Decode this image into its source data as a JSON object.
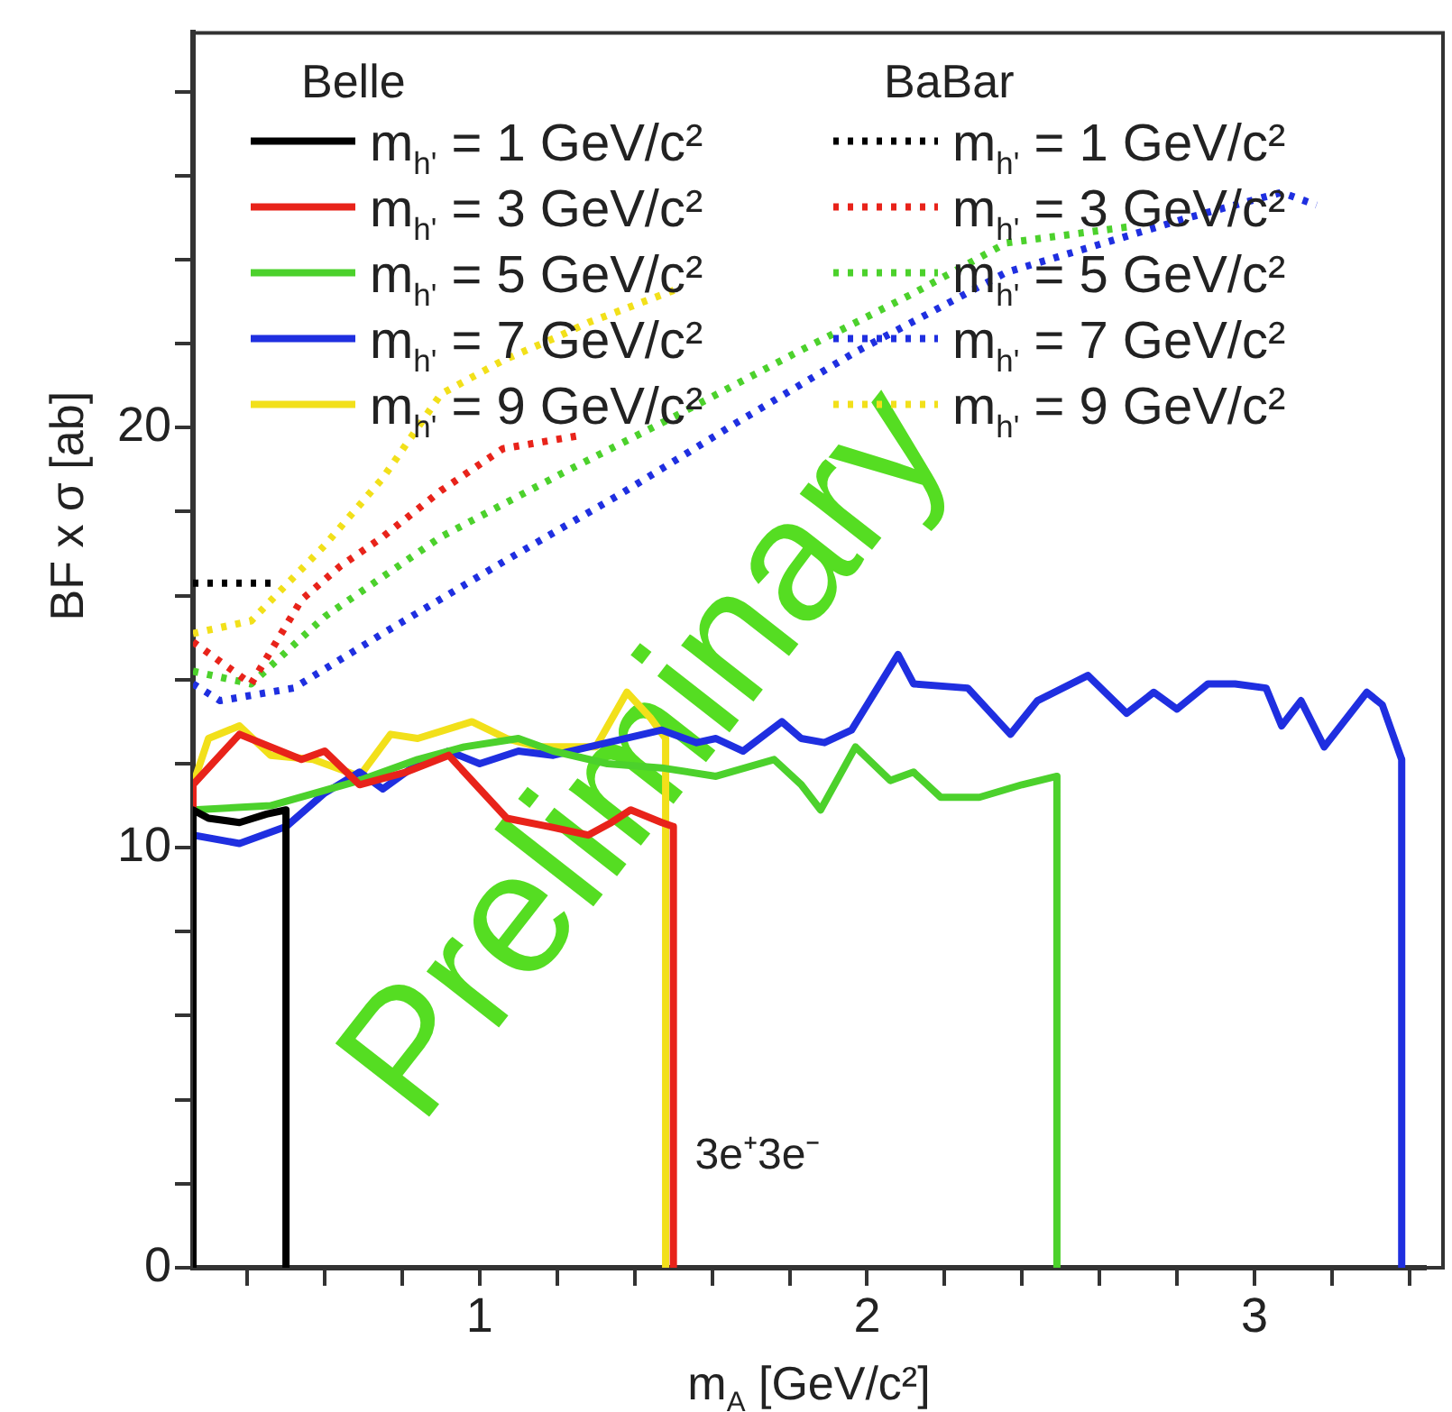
{
  "chart_data": {
    "type": "line",
    "xlabel": "m$_{A}$ [GeV/c²]",
    "ylabel": "BF x σ [ab]",
    "xlim": [
      0.26,
      3.44
    ],
    "ylim": [
      0,
      29.4
    ],
    "xticks": [
      {
        "value": 0.4,
        "label": null
      },
      {
        "value": 0.6,
        "label": null
      },
      {
        "value": 0.8,
        "label": null
      },
      1,
      {
        "value": 1.2,
        "label": null
      },
      {
        "value": 1.4,
        "label": null
      },
      {
        "value": 1.6,
        "label": null
      },
      {
        "value": 1.8,
        "label": null
      },
      2,
      {
        "value": 2.2,
        "label": null
      },
      {
        "value": 2.4,
        "label": null
      },
      {
        "value": 2.6,
        "label": null
      },
      {
        "value": 2.8,
        "label": null
      },
      3,
      {
        "value": 3.2,
        "label": null
      },
      {
        "value": 3.4,
        "label": null
      }
    ],
    "yticks": [
      0,
      {
        "value": 2,
        "label": null
      },
      {
        "value": 4,
        "label": null
      },
      {
        "value": 6,
        "label": null
      },
      {
        "value": 8,
        "label": null
      },
      10,
      {
        "value": 12,
        "label": null
      },
      {
        "value": 14,
        "label": null
      },
      {
        "value": 16,
        "label": null
      },
      {
        "value": 18,
        "label": null
      },
      20,
      {
        "value": 22,
        "label": null
      },
      {
        "value": 24,
        "label": null
      },
      {
        "value": 26,
        "label": null
      },
      {
        "value": 28,
        "label": null
      }
    ],
    "grid": false,
    "legend": "top left",
    "marker": "none",
    "annotations": [
      "Belle",
      "BaBar",
      "3e⁺3e⁻",
      "Preliminary"
    ],
    "series": [
      {
        "name": "m$_{h'}$ = 1 GeV/c²",
        "color": "#000000",
        "line_style": "solid",
        "x": [
          0.26,
          0.26,
          0.3,
          0.38,
          0.45,
          0.5,
          0.5
        ],
        "values": [
          0,
          10.9,
          10.7,
          10.6,
          10.8,
          10.9,
          0
        ]
      },
      {
        "name": "m$_{h'}$ = 3 GeV/c²",
        "color": "#e8231a",
        "line_style": "solid",
        "x": [
          0.26,
          0.26,
          0.38,
          0.54,
          0.6,
          0.69,
          0.81,
          0.92,
          1.0,
          1.07,
          1.18,
          1.28,
          1.34,
          1.39,
          1.47,
          1.5,
          1.5
        ],
        "values": [
          0,
          11.5,
          12.7,
          12.1,
          12.3,
          11.5,
          11.8,
          12.2,
          11.4,
          10.7,
          10.5,
          10.3,
          10.6,
          10.9,
          10.6,
          10.5,
          0
        ]
      },
      {
        "name": "m$_{h'}$ = 5 GeV/c²",
        "color": "#4cd12c",
        "line_style": "solid",
        "x": [
          0.26,
          0.26,
          0.46,
          0.69,
          0.84,
          0.96,
          1.1,
          1.19,
          1.33,
          1.47,
          1.61,
          1.76,
          1.83,
          1.88,
          1.97,
          2.06,
          2.12,
          2.19,
          2.29,
          2.4,
          2.49,
          2.49
        ],
        "values": [
          0,
          10.9,
          11.0,
          11.6,
          12.1,
          12.4,
          12.6,
          12.3,
          12.0,
          11.9,
          11.7,
          12.1,
          11.5,
          10.9,
          12.4,
          11.6,
          11.8,
          11.2,
          11.2,
          11.5,
          11.7,
          0
        ]
      },
      {
        "name": "m$_{h'}$ = 7 GeV/c²",
        "color": "#1f2fe0",
        "line_style": "solid",
        "x": [
          0.26,
          0.26,
          0.38,
          0.5,
          0.6,
          0.69,
          0.75,
          0.84,
          0.92,
          1.0,
          1.1,
          1.19,
          1.33,
          1.47,
          1.56,
          1.61,
          1.68,
          1.78,
          1.83,
          1.89,
          1.96,
          2.0,
          2.08,
          2.12,
          2.26,
          2.37,
          2.44,
          2.57,
          2.67,
          2.74,
          2.8,
          2.88,
          2.95,
          3.03,
          3.07,
          3.12,
          3.18,
          3.29,
          3.33,
          3.38,
          3.38
        ],
        "values": [
          0,
          10.3,
          10.1,
          10.5,
          11.3,
          11.8,
          11.4,
          12.0,
          12.3,
          12.0,
          12.3,
          12.2,
          12.5,
          12.8,
          12.5,
          12.6,
          12.3,
          13.0,
          12.6,
          12.5,
          12.8,
          13.4,
          14.6,
          13.9,
          13.8,
          12.7,
          13.5,
          14.1,
          13.2,
          13.7,
          13.3,
          13.9,
          13.9,
          13.8,
          12.9,
          13.5,
          12.4,
          13.7,
          13.4,
          12.1,
          0
        ]
      },
      {
        "name": "m$_{h'}$ = 9 GeV/c²",
        "color": "#f2e01a",
        "line_style": "solid",
        "x": [
          0.26,
          0.26,
          0.3,
          0.38,
          0.46,
          0.57,
          0.69,
          0.77,
          0.84,
          0.98,
          1.07,
          1.15,
          1.3,
          1.38,
          1.44,
          1.48,
          1.48
        ],
        "values": [
          0,
          11.5,
          12.6,
          12.9,
          12.2,
          12.1,
          11.7,
          12.7,
          12.6,
          13.0,
          12.6,
          12.4,
          12.4,
          13.7,
          13.1,
          12.6,
          0
        ]
      },
      {
        "name": "m$_{h'}$ = 1 GeV/c²",
        "color": "#000000",
        "line_style": "dotted",
        "x": [
          0.26,
          0.47
        ],
        "values": [
          16.3,
          16.3
        ]
      },
      {
        "name": "m$_{h'}$ = 3 GeV/c²",
        "color": "#e8231a",
        "line_style": "dotted",
        "x": [
          0.26,
          0.41,
          0.54,
          0.64,
          0.75,
          0.9,
          1.06,
          1.25
        ],
        "values": [
          14.9,
          13.9,
          15.9,
          16.7,
          17.4,
          18.5,
          19.5,
          19.8
        ]
      },
      {
        "name": "m$_{h'}$ = 5 GeV/c²",
        "color": "#4cd12c",
        "line_style": "dotted",
        "x": [
          0.26,
          0.41,
          0.6,
          0.9,
          1.21,
          1.51,
          1.82,
          2.12,
          2.36,
          2.69
        ],
        "values": [
          14.2,
          13.9,
          15.5,
          17.4,
          18.9,
          20.3,
          21.8,
          23.2,
          24.4,
          24.8
        ]
      },
      {
        "name": "m$_{h'}$ = 7 GeV/c²",
        "color": "#1f2fe0",
        "line_style": "dotted",
        "x": [
          0.26,
          0.33,
          0.52,
          0.75,
          1.06,
          1.36,
          1.66,
          1.97,
          2.36,
          2.83,
          3.07,
          3.16
        ],
        "values": [
          13.9,
          13.5,
          13.8,
          15.1,
          16.8,
          18.4,
          20.1,
          21.8,
          23.7,
          25.0,
          25.6,
          25.3
        ]
      },
      {
        "name": "m$_{h'}$ = 9 GeV/c²",
        "color": "#f2e01a",
        "line_style": "dotted",
        "x": [
          0.26,
          0.41,
          0.6,
          0.75,
          0.9,
          1.06,
          1.21,
          1.28,
          1.51
        ],
        "values": [
          15.1,
          15.4,
          17.2,
          18.8,
          20.8,
          21.6,
          22.2,
          22.5,
          23.3
        ]
      }
    ]
  }
}
